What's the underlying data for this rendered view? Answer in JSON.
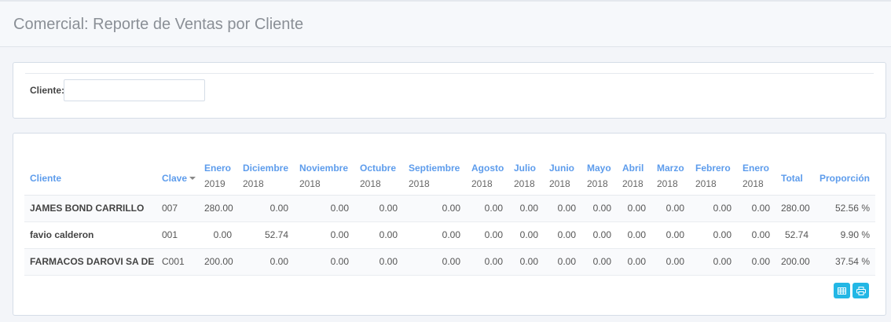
{
  "page": {
    "title": "Comercial: Reporte de Ventas por Cliente"
  },
  "filter": {
    "cliente_label": "Cliente:",
    "cliente_value": ""
  },
  "table": {
    "headers": {
      "cliente": "Cliente",
      "clave": "Clave",
      "total": "Total",
      "proporcion": "Proporción"
    },
    "months": [
      {
        "month": "Enero",
        "year": "2019"
      },
      {
        "month": "Diciembre",
        "year": "2018"
      },
      {
        "month": "Noviembre",
        "year": "2018"
      },
      {
        "month": "Octubre",
        "year": "2018"
      },
      {
        "month": "Septiembre",
        "year": "2018"
      },
      {
        "month": "Agosto",
        "year": "2018"
      },
      {
        "month": "Julio",
        "year": "2018"
      },
      {
        "month": "Junio",
        "year": "2018"
      },
      {
        "month": "Mayo",
        "year": "2018"
      },
      {
        "month": "Abril",
        "year": "2018"
      },
      {
        "month": "Marzo",
        "year": "2018"
      },
      {
        "month": "Febrero",
        "year": "2018"
      },
      {
        "month": "Enero",
        "year": "2018"
      }
    ],
    "rows": [
      {
        "cliente": "JAMES BOND CARRILLO",
        "clave": "007",
        "values": [
          "280.00",
          "0.00",
          "0.00",
          "0.00",
          "0.00",
          "0.00",
          "0.00",
          "0.00",
          "0.00",
          "0.00",
          "0.00",
          "0.00",
          "0.00"
        ],
        "total": "280.00",
        "proporcion": "52.56 %"
      },
      {
        "cliente": "favio calderon",
        "clave": "001",
        "values": [
          "0.00",
          "52.74",
          "0.00",
          "0.00",
          "0.00",
          "0.00",
          "0.00",
          "0.00",
          "0.00",
          "0.00",
          "0.00",
          "0.00",
          "0.00"
        ],
        "total": "52.74",
        "proporcion": "9.90 %"
      },
      {
        "cliente": "FARMACOS DAROVI SA DE CV",
        "clave": "C001",
        "values": [
          "200.00",
          "0.00",
          "0.00",
          "0.00",
          "0.00",
          "0.00",
          "0.00",
          "0.00",
          "0.00",
          "0.00",
          "0.00",
          "0.00",
          "0.00"
        ],
        "total": "200.00",
        "proporcion": "37.54 %"
      }
    ]
  },
  "actions": {
    "excel_icon": "table-icon",
    "print_icon": "print-icon",
    "accent": "#23b7e5"
  }
}
